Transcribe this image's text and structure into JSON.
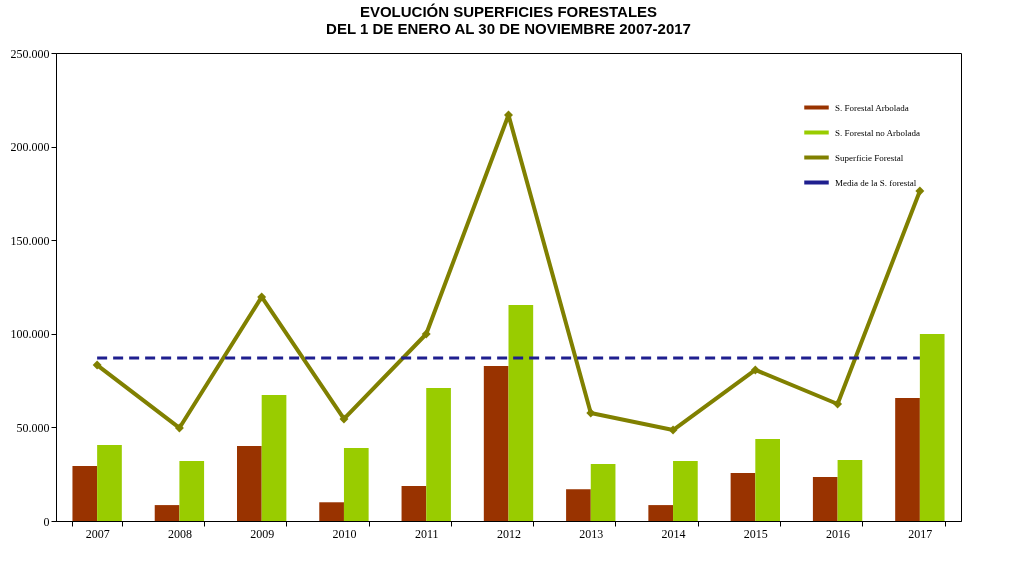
{
  "chart_data": {
    "type": "bar",
    "title": "EVOLUCIÓN SUPERFICIES FORESTALES\nDEL 1 DE ENERO AL 30 DE NOVIEMBRE 2007-2017",
    "categories": [
      "2007",
      "2008",
      "2009",
      "2010",
      "2011",
      "2012",
      "2013",
      "2014",
      "2015",
      "2016",
      "2017"
    ],
    "series": [
      {
        "name": "S. Forestal Arbolada",
        "color": "#993300",
        "values": [
          29400,
          8500,
          40000,
          10000,
          18700,
          82800,
          17000,
          8500,
          25600,
          23500,
          65700
        ]
      },
      {
        "name": "S. Forestal no Arbolada",
        "color": "#99cc00",
        "values": [
          40600,
          32000,
          67300,
          39000,
          71000,
          115400,
          30400,
          32000,
          43800,
          32600,
          99900
        ]
      },
      {
        "name": "Superficie Forestal",
        "type": "line",
        "color": "#808000",
        "marker": "diamond",
        "values": [
          83300,
          49700,
          119700,
          54500,
          99900,
          216900,
          57700,
          48600,
          80700,
          62500,
          176300
        ]
      }
    ],
    "ref_lines": [
      {
        "axis": "y",
        "value": 87100,
        "label": "Media de la S. forestal",
        "color": "#1f1f8f",
        "line_style": "dashed"
      }
    ],
    "ylim": [
      0,
      250000
    ],
    "yticks": [
      0,
      {
        "value": 50000,
        "label": "50.000"
      },
      {
        "value": 100000,
        "label": "100.000"
      },
      {
        "value": 150000,
        "label": "150.000"
      },
      {
        "value": 200000,
        "label": "200.000"
      },
      {
        "value": 250000,
        "label": "250.000"
      }
    ],
    "legend": "top right"
  }
}
